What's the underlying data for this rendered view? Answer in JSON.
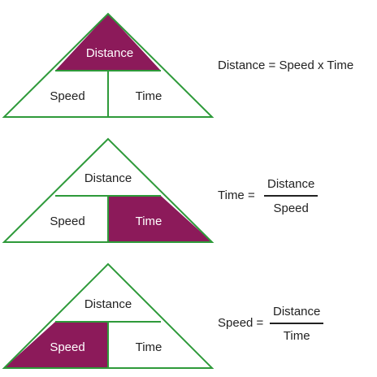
{
  "colors": {
    "outline": "#2e9a3a",
    "highlight": "#8c1a5a",
    "highlight_text": "#ffffff",
    "text": "#222222"
  },
  "triangles": [
    {
      "top_label": "Distance",
      "left_label": "Speed",
      "right_label": "Time",
      "highlight": "top",
      "equation": {
        "lhs": "Distance = Speed x Time"
      }
    },
    {
      "top_label": "Distance",
      "left_label": "Speed",
      "right_label": "Time",
      "highlight": "right",
      "equation": {
        "lhs": "Time =",
        "numerator": "Distance",
        "denominator": "Speed"
      }
    },
    {
      "top_label": "Distance",
      "left_label": "Speed",
      "right_label": "Time",
      "highlight": "left",
      "equation": {
        "lhs": "Speed =",
        "numerator": "Distance",
        "denominator": "Time"
      }
    }
  ]
}
